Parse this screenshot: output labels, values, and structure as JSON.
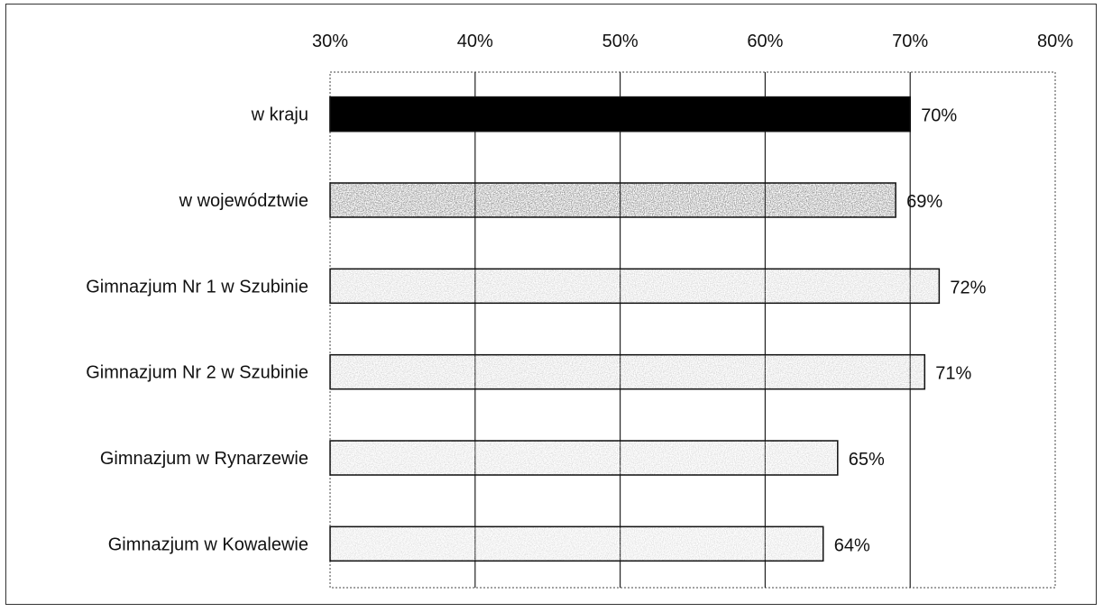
{
  "chart_data": {
    "type": "bar",
    "orientation": "horizontal",
    "categories": [
      "w kraju",
      "w województwie",
      "Gimnazjum Nr 1 w Szubinie",
      "Gimnazjum Nr 2 w Szubinie",
      "Gimnazjum w Rynarzewie",
      "Gimnazjum w Kowalewie"
    ],
    "values": [
      70,
      69,
      72,
      71,
      65,
      64
    ],
    "value_labels": [
      "70%",
      "69%",
      "72%",
      "71%",
      "65%",
      "64%"
    ],
    "bar_fills": [
      "#000000",
      "#555555",
      "#c4c4c4",
      "#c4c4c4",
      "#cdcdcd",
      "#d0d0d0"
    ],
    "xlim": [
      30,
      80
    ],
    "xticks": [
      30,
      40,
      50,
      60,
      70,
      80
    ],
    "xtick_labels": [
      "30%",
      "40%",
      "50%",
      "60%",
      "70%",
      "80%"
    ],
    "x_axis_position": "top",
    "grid": "vertical",
    "legend": "none"
  }
}
